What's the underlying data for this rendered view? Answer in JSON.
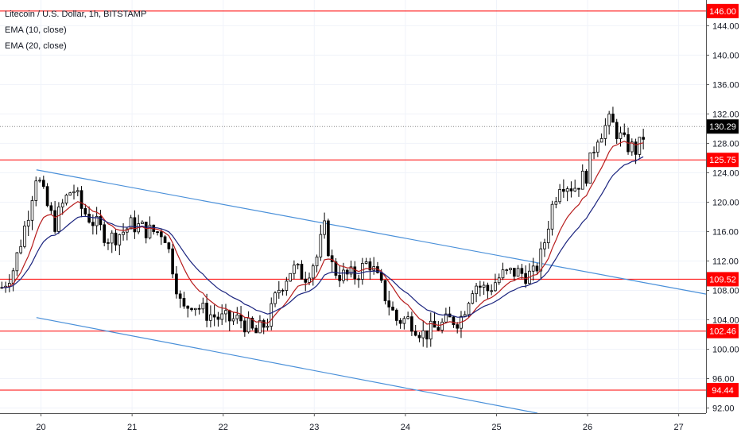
{
  "legend": {
    "symbol": "Litecoin / U.S. Dollar, 1h, BITSTAMP",
    "ema1": "EMA (10, close)",
    "ema2": "EMA (20, close)"
  },
  "colors": {
    "up_candle": "#ffffff",
    "down_candle": "#000000",
    "wick": "#000000",
    "horizontal_level": "#ff0000",
    "trend_line": "#4a90d9",
    "ema10": "#b71c1c",
    "ema20": "#1a237e",
    "badge": "#ff0000",
    "last_badge": "#000000",
    "axis": "#131722"
  },
  "chart_data": {
    "type": "candlestick",
    "title": "Litecoin / U.S. Dollar, 1h, BITSTAMP",
    "x_tick_labels": [
      "20",
      "21",
      "22",
      "23",
      "24",
      "25",
      "26",
      "27"
    ],
    "x_ticks_days": [
      20,
      21,
      22,
      23,
      24,
      25,
      26,
      27
    ],
    "xlim_days": [
      19.55,
      27.3
    ],
    "y_tick_labels": [
      "92.00",
      "96.00",
      "100.00",
      "104.00",
      "108.00",
      "112.00",
      "116.00",
      "120.00",
      "124.00",
      "128.00",
      "132.00",
      "136.00",
      "140.00",
      "144.00"
    ],
    "y_ticks": [
      92,
      96,
      100,
      104,
      108,
      112,
      116,
      120,
      124,
      128,
      132,
      136,
      140,
      144
    ],
    "ylim": [
      91.3,
      147.5
    ],
    "horizontal_levels": [
      {
        "price": 146.0,
        "label": "146.00"
      },
      {
        "price": 125.75,
        "label": "125.75"
      },
      {
        "price": 109.52,
        "label": "109.52"
      },
      {
        "price": 102.46,
        "label": "102.46"
      },
      {
        "price": 94.44,
        "label": "94.44"
      }
    ],
    "last_price": {
      "price": 130.29,
      "label": "130.29"
    },
    "trend_lines": [
      {
        "from": {
          "day": 19.95,
          "price": 124.4
        },
        "to": {
          "day": 27.3,
          "price": 107.5
        }
      },
      {
        "from": {
          "day": 19.95,
          "price": 104.3
        },
        "to": {
          "day": 25.45,
          "price": 91.3
        }
      }
    ],
    "price_path": [
      [
        19.55,
        108.0
      ],
      [
        19.7,
        111.0
      ],
      [
        19.85,
        118.0
      ],
      [
        19.95,
        124.0
      ],
      [
        20.05,
        120.0
      ],
      [
        20.15,
        117.0
      ],
      [
        20.25,
        120.0
      ],
      [
        20.35,
        122.0
      ],
      [
        20.45,
        119.0
      ],
      [
        20.6,
        117.0
      ],
      [
        20.75,
        115.0
      ],
      [
        20.9,
        116.0
      ],
      [
        21.0,
        117.0
      ],
      [
        21.2,
        116.0
      ],
      [
        21.35,
        116.0
      ],
      [
        21.45,
        111.0
      ],
      [
        21.55,
        105.0
      ],
      [
        21.65,
        106.5
      ],
      [
        21.8,
        105.0
      ],
      [
        22.0,
        104.0
      ],
      [
        22.2,
        104.0
      ],
      [
        22.35,
        102.0
      ],
      [
        22.5,
        104.0
      ],
      [
        22.6,
        108.0
      ],
      [
        22.75,
        111.0
      ],
      [
        22.9,
        110.0
      ],
      [
        23.05,
        113.0
      ],
      [
        23.1,
        117.0
      ],
      [
        23.2,
        111.0
      ],
      [
        23.3,
        110.0
      ],
      [
        23.45,
        110.0
      ],
      [
        23.6,
        112.0
      ],
      [
        23.75,
        108.0
      ],
      [
        23.9,
        104.0
      ],
      [
        24.05,
        104.0
      ],
      [
        24.2,
        102.0
      ],
      [
        24.35,
        103.0
      ],
      [
        24.5,
        104.0
      ],
      [
        24.6,
        104.0
      ],
      [
        24.75,
        109.0
      ],
      [
        24.9,
        108.0
      ],
      [
        25.05,
        110.0
      ],
      [
        25.2,
        110.5
      ],
      [
        25.4,
        110.0
      ],
      [
        25.5,
        113.0
      ],
      [
        25.6,
        119.0
      ],
      [
        25.7,
        123.0
      ],
      [
        25.85,
        122.0
      ],
      [
        26.0,
        124.0
      ],
      [
        26.1,
        129.0
      ],
      [
        26.25,
        131.0
      ],
      [
        26.4,
        128.0
      ],
      [
        26.55,
        127.0
      ],
      [
        26.65,
        130.29
      ]
    ],
    "emas": [
      {
        "name": "EMA (10, close)",
        "period": 10
      },
      {
        "name": "EMA (20, close)",
        "period": 20
      }
    ],
    "candles_per_day": 24,
    "end_day": 26.65
  }
}
